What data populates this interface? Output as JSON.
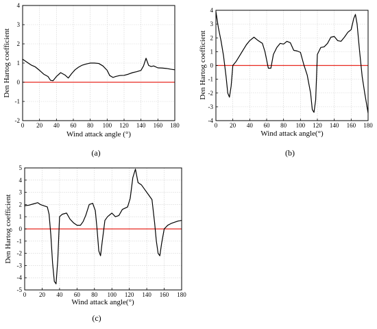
{
  "chart_data": [
    {
      "id": "a",
      "type": "line",
      "panel_label": "(a)",
      "xlabel": "Wind attack angle (°)",
      "ylabel": "Den Hartog coefficient",
      "xlim": [
        0,
        180
      ],
      "ylim": [
        -2,
        4
      ],
      "xticks": [
        0,
        20,
        40,
        60,
        80,
        100,
        120,
        140,
        160,
        180
      ],
      "yticks": [
        -2,
        -1,
        0,
        1,
        2,
        3,
        4
      ],
      "grid": true,
      "zero_line": {
        "y": 0,
        "color": "#e8261d"
      },
      "series": [
        {
          "color": "#000000",
          "x": [
            0,
            5,
            10,
            15,
            20,
            25,
            30,
            33,
            36,
            40,
            45,
            50,
            54,
            58,
            62,
            66,
            70,
            75,
            80,
            85,
            90,
            95,
            100,
            103,
            107,
            110,
            115,
            120,
            125,
            130,
            135,
            140,
            143,
            146,
            149,
            152,
            155,
            160,
            165,
            170,
            175,
            180
          ],
          "y": [
            1.2,
            1.05,
            0.9,
            0.8,
            0.62,
            0.42,
            0.3,
            0.1,
            0.08,
            0.3,
            0.5,
            0.38,
            0.22,
            0.45,
            0.65,
            0.78,
            0.88,
            0.95,
            1.0,
            1.0,
            0.98,
            0.85,
            0.62,
            0.35,
            0.25,
            0.3,
            0.35,
            0.36,
            0.42,
            0.5,
            0.55,
            0.62,
            0.85,
            1.25,
            0.88,
            0.82,
            0.85,
            0.75,
            0.74,
            0.72,
            0.68,
            0.65
          ]
        }
      ]
    },
    {
      "id": "b",
      "type": "line",
      "panel_label": "(b)",
      "xlabel": "Wind attack angle(°)",
      "ylabel": "Den Hartog coefficient",
      "xlim": [
        0,
        180
      ],
      "ylim": [
        -4,
        4
      ],
      "xticks": [
        0,
        20,
        40,
        60,
        80,
        100,
        120,
        140,
        160,
        180
      ],
      "yticks": [
        -4,
        -3,
        -2,
        -1,
        0,
        1,
        2,
        3,
        4
      ],
      "grid": true,
      "zero_line": {
        "y": 0,
        "color": "#e8261d"
      },
      "series": [
        {
          "color": "#000000",
          "x": [
            0,
            3,
            6,
            9,
            12,
            14,
            16,
            18,
            20,
            24,
            28,
            32,
            36,
            40,
            45,
            50,
            55,
            58,
            62,
            65,
            68,
            72,
            76,
            80,
            84,
            88,
            92,
            96,
            100,
            104,
            108,
            112,
            114,
            116,
            118,
            120,
            124,
            128,
            132,
            136,
            140,
            144,
            148,
            152,
            156,
            160,
            163,
            165,
            167,
            170,
            173,
            176,
            180
          ],
          "y": [
            3.9,
            2.7,
            1.8,
            0.7,
            -0.8,
            -2.0,
            -2.3,
            -1.5,
            0.0,
            0.3,
            0.7,
            1.1,
            1.5,
            1.8,
            2.05,
            1.8,
            1.6,
            1.0,
            -0.2,
            -0.2,
            0.8,
            1.3,
            1.6,
            1.55,
            1.75,
            1.65,
            1.1,
            1.05,
            0.95,
            0.05,
            -0.7,
            -2.0,
            -3.2,
            -3.4,
            -2.5,
            0.8,
            1.3,
            1.35,
            1.6,
            2.05,
            2.1,
            1.8,
            1.75,
            2.05,
            2.4,
            2.6,
            3.4,
            3.7,
            3.0,
            1.0,
            -0.8,
            -2.0,
            -3.45
          ]
        }
      ]
    },
    {
      "id": "c",
      "type": "line",
      "panel_label": "(c)",
      "xlabel": "Wind attack angle(°)",
      "ylabel": "Den Hartog coefficient",
      "xlim": [
        0,
        180
      ],
      "ylim": [
        -5,
        5
      ],
      "xticks": [
        0,
        20,
        40,
        60,
        80,
        100,
        120,
        140,
        160,
        180
      ],
      "yticks": [
        -5,
        -4,
        -3,
        -2,
        -1,
        0,
        1,
        2,
        3,
        4,
        5
      ],
      "grid": true,
      "zero_line": {
        "y": 0,
        "color": "#e8261d"
      },
      "series": [
        {
          "color": "#000000",
          "x": [
            0,
            5,
            10,
            15,
            18,
            22,
            26,
            28,
            30,
            32,
            34,
            36,
            38,
            40,
            43,
            48,
            52,
            56,
            60,
            64,
            67,
            70,
            74,
            78,
            81,
            83,
            85,
            87,
            89,
            92,
            95,
            100,
            104,
            108,
            112,
            118,
            121,
            124,
            127,
            130,
            134,
            138,
            142,
            146,
            149,
            151,
            153,
            155,
            157,
            160,
            164,
            168,
            172,
            176,
            180
          ],
          "y": [
            1.9,
            1.95,
            2.05,
            2.15,
            2.0,
            1.9,
            1.8,
            1.2,
            -0.5,
            -2.8,
            -4.3,
            -4.5,
            -2.5,
            1.0,
            1.2,
            1.3,
            0.8,
            0.5,
            0.3,
            0.3,
            0.6,
            1.1,
            2.0,
            2.1,
            1.5,
            0.0,
            -1.8,
            -2.2,
            -1.0,
            0.7,
            1.0,
            1.3,
            1.0,
            1.1,
            1.6,
            1.8,
            2.5,
            4.2,
            4.9,
            3.8,
            3.6,
            3.2,
            2.8,
            2.4,
            0.5,
            -1.0,
            -2.0,
            -2.2,
            -1.2,
            0.0,
            0.3,
            0.45,
            0.55,
            0.65,
            0.7
          ]
        }
      ]
    }
  ]
}
